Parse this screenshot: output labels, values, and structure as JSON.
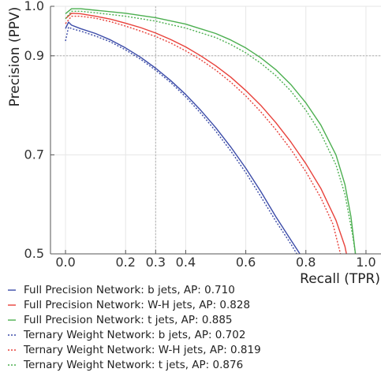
{
  "chart_data": {
    "type": "line",
    "title": "",
    "xlabel": "Recall (TPR)",
    "ylabel": "Precision (PPV)",
    "xlim": [
      -0.05,
      1.05
    ],
    "ylim": [
      0.5,
      1.0
    ],
    "x_ticks": [
      0.0,
      0.2,
      0.3,
      0.4,
      0.6,
      0.8,
      1.0
    ],
    "x_tick_labels": [
      "0.0",
      "0.2",
      "0.3",
      "0.4",
      "0.6",
      "0.8",
      "1.0"
    ],
    "y_ticks": [
      0.5,
      0.7,
      0.9,
      1.0
    ],
    "y_tick_labels": [
      "0.5",
      "0.7",
      "0.9",
      "1.0"
    ],
    "grid": true,
    "reference_lines": {
      "x": 0.3,
      "y": 0.9
    },
    "legend_position": "below",
    "colors": {
      "b": "#3b4ba8",
      "wh": "#e8413a",
      "t": "#4caf50"
    },
    "series": [
      {
        "name": "Full Precision Network: b jets, AP: 0.710",
        "color": "#3b4ba8",
        "style": "solid",
        "points": [
          [
            0,
            0.955
          ],
          [
            0.01,
            0.968
          ],
          [
            0.02,
            0.962
          ],
          [
            0.05,
            0.955
          ],
          [
            0.1,
            0.945
          ],
          [
            0.15,
            0.932
          ],
          [
            0.2,
            0.916
          ],
          [
            0.25,
            0.897
          ],
          [
            0.3,
            0.875
          ],
          [
            0.35,
            0.85
          ],
          [
            0.4,
            0.822
          ],
          [
            0.45,
            0.79
          ],
          [
            0.5,
            0.755
          ],
          [
            0.55,
            0.716
          ],
          [
            0.6,
            0.673
          ],
          [
            0.65,
            0.626
          ],
          [
            0.7,
            0.575
          ],
          [
            0.75,
            0.528
          ],
          [
            0.78,
            0.5
          ]
        ]
      },
      {
        "name": "Full Precision Network: W-H jets, AP: 0.828",
        "color": "#e8413a",
        "style": "solid",
        "points": [
          [
            0,
            0.975
          ],
          [
            0.02,
            0.986
          ],
          [
            0.05,
            0.985
          ],
          [
            0.1,
            0.98
          ],
          [
            0.15,
            0.974
          ],
          [
            0.2,
            0.966
          ],
          [
            0.25,
            0.957
          ],
          [
            0.3,
            0.946
          ],
          [
            0.35,
            0.933
          ],
          [
            0.4,
            0.918
          ],
          [
            0.45,
            0.9
          ],
          [
            0.5,
            0.88
          ],
          [
            0.55,
            0.857
          ],
          [
            0.6,
            0.83
          ],
          [
            0.65,
            0.8
          ],
          [
            0.7,
            0.765
          ],
          [
            0.75,
            0.726
          ],
          [
            0.8,
            0.682
          ],
          [
            0.85,
            0.632
          ],
          [
            0.9,
            0.568
          ],
          [
            0.93,
            0.515
          ],
          [
            0.935,
            0.5
          ]
        ]
      },
      {
        "name": "Full Precision Network: t jets, AP: 0.885",
        "color": "#4caf50",
        "style": "solid",
        "points": [
          [
            0,
            0.985
          ],
          [
            0.02,
            0.995
          ],
          [
            0.05,
            0.995
          ],
          [
            0.1,
            0.992
          ],
          [
            0.2,
            0.986
          ],
          [
            0.3,
            0.977
          ],
          [
            0.4,
            0.964
          ],
          [
            0.5,
            0.945
          ],
          [
            0.55,
            0.932
          ],
          [
            0.6,
            0.916
          ],
          [
            0.65,
            0.896
          ],
          [
            0.7,
            0.872
          ],
          [
            0.75,
            0.842
          ],
          [
            0.8,
            0.805
          ],
          [
            0.85,
            0.76
          ],
          [
            0.9,
            0.7
          ],
          [
            0.93,
            0.64
          ],
          [
            0.95,
            0.575
          ],
          [
            0.965,
            0.5
          ]
        ]
      },
      {
        "name": "Ternary Weight Network: b jets, AP: 0.702",
        "color": "#3b4ba8",
        "style": "dotted",
        "points": [
          [
            0,
            0.93
          ],
          [
            0.01,
            0.958
          ],
          [
            0.02,
            0.955
          ],
          [
            0.05,
            0.95
          ],
          [
            0.1,
            0.94
          ],
          [
            0.15,
            0.928
          ],
          [
            0.2,
            0.912
          ],
          [
            0.25,
            0.893
          ],
          [
            0.3,
            0.871
          ],
          [
            0.35,
            0.846
          ],
          [
            0.4,
            0.817
          ],
          [
            0.45,
            0.784
          ],
          [
            0.5,
            0.748
          ],
          [
            0.55,
            0.708
          ],
          [
            0.6,
            0.664
          ],
          [
            0.65,
            0.616
          ],
          [
            0.7,
            0.566
          ],
          [
            0.75,
            0.52
          ],
          [
            0.77,
            0.5
          ]
        ]
      },
      {
        "name": "Ternary Weight Network: W-H jets, AP: 0.819",
        "color": "#e8413a",
        "style": "dotted",
        "points": [
          [
            0,
            0.965
          ],
          [
            0.02,
            0.98
          ],
          [
            0.05,
            0.98
          ],
          [
            0.1,
            0.976
          ],
          [
            0.15,
            0.969
          ],
          [
            0.2,
            0.96
          ],
          [
            0.25,
            0.95
          ],
          [
            0.3,
            0.939
          ],
          [
            0.35,
            0.926
          ],
          [
            0.4,
            0.91
          ],
          [
            0.45,
            0.892
          ],
          [
            0.5,
            0.871
          ],
          [
            0.55,
            0.847
          ],
          [
            0.6,
            0.819
          ],
          [
            0.65,
            0.787
          ],
          [
            0.7,
            0.751
          ],
          [
            0.75,
            0.711
          ],
          [
            0.8,
            0.666
          ],
          [
            0.85,
            0.613
          ],
          [
            0.89,
            0.56
          ],
          [
            0.915,
            0.5
          ]
        ]
      },
      {
        "name": "Ternary Weight Network: t jets, AP: 0.876",
        "color": "#4caf50",
        "style": "dotted",
        "points": [
          [
            0,
            0.975
          ],
          [
            0.02,
            0.99
          ],
          [
            0.05,
            0.99
          ],
          [
            0.1,
            0.987
          ],
          [
            0.2,
            0.98
          ],
          [
            0.3,
            0.97
          ],
          [
            0.4,
            0.956
          ],
          [
            0.5,
            0.937
          ],
          [
            0.55,
            0.923
          ],
          [
            0.6,
            0.906
          ],
          [
            0.65,
            0.885
          ],
          [
            0.7,
            0.86
          ],
          [
            0.75,
            0.829
          ],
          [
            0.8,
            0.79
          ],
          [
            0.85,
            0.743
          ],
          [
            0.9,
            0.68
          ],
          [
            0.93,
            0.62
          ],
          [
            0.955,
            0.54
          ],
          [
            0.965,
            0.5
          ]
        ]
      }
    ]
  }
}
